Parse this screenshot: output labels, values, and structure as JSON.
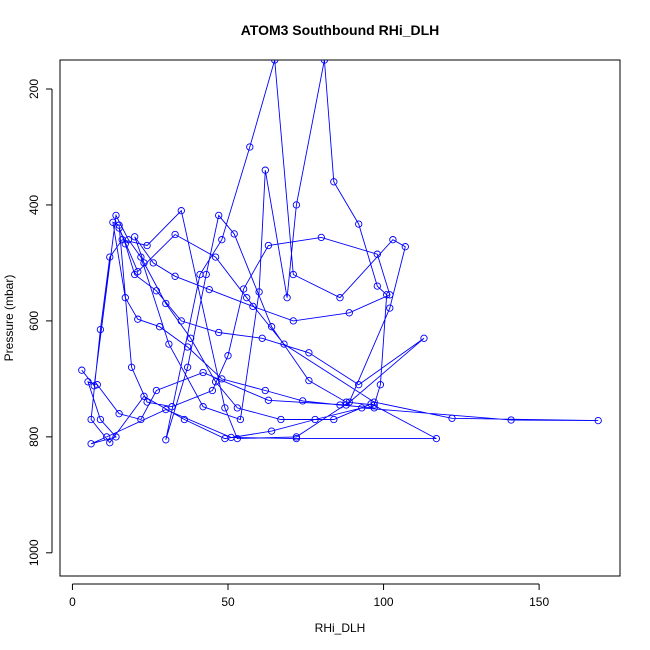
{
  "chart_data": {
    "type": "line",
    "title": "ATOM3 Southbound RHi_DLH",
    "xlabel": "RHi_DLH",
    "ylabel": "Pressure (mbar)",
    "xlim": [
      -4,
      176
    ],
    "ylim": [
      1040,
      150
    ],
    "y_reversed": true,
    "x_ticks": [
      0,
      50,
      100,
      150
    ],
    "y_ticks": [
      200,
      400,
      600,
      800,
      1000
    ],
    "grid": false,
    "legend": "none",
    "colors": {
      "series": "#0000ff",
      "axis": "#000000"
    },
    "series": [
      {
        "marker": "open-circle",
        "points": [
          [
            3,
            685
          ],
          [
            7,
            712
          ],
          [
            14,
            418
          ],
          [
            18,
            460
          ],
          [
            22,
            490
          ],
          [
            31,
            640
          ],
          [
            42,
            748
          ],
          [
            54,
            770
          ],
          [
            60,
            550
          ],
          [
            62,
            340
          ],
          [
            69,
            560
          ],
          [
            72,
            400
          ],
          [
            81,
            150
          ],
          [
            84,
            360
          ],
          [
            92,
            433
          ],
          [
            98,
            540
          ],
          [
            101,
            555
          ],
          [
            99,
            710
          ],
          [
            97,
            745
          ],
          [
            88,
            740
          ],
          [
            76,
            703
          ],
          [
            64,
            610
          ],
          [
            52,
            450
          ],
          [
            47,
            418
          ],
          [
            43,
            520
          ],
          [
            37,
            680
          ],
          [
            30,
            805
          ],
          [
            41,
            520
          ],
          [
            48,
            460
          ],
          [
            57,
            300
          ],
          [
            65,
            150
          ],
          [
            71,
            520
          ],
          [
            86,
            560
          ],
          [
            103,
            460
          ],
          [
            107,
            472
          ],
          [
            102,
            578
          ],
          [
            89,
            740
          ],
          [
            72,
            800
          ],
          [
            53,
            803
          ],
          [
            49,
            750
          ],
          [
            35,
            410
          ],
          [
            24,
            470
          ],
          [
            16,
            460
          ],
          [
            12,
            490
          ],
          [
            9,
            615
          ],
          [
            6,
            770
          ],
          [
            12,
            810
          ],
          [
            23,
            730
          ],
          [
            36,
            770
          ],
          [
            49,
            803
          ],
          [
            64,
            790
          ],
          [
            78,
            770
          ],
          [
            93,
            750
          ],
          [
            141,
            771
          ],
          [
            169,
            772
          ],
          [
            122,
            768
          ],
          [
            97,
            740
          ],
          [
            68,
            640
          ],
          [
            56,
            560
          ],
          [
            46,
            490
          ],
          [
            33,
            451
          ],
          [
            21,
            515
          ],
          [
            15,
            440
          ],
          [
            17,
            467
          ],
          [
            20,
            520
          ],
          [
            27,
            548
          ],
          [
            35,
            600
          ],
          [
            47,
            620
          ],
          [
            61,
            630
          ],
          [
            76,
            655
          ],
          [
            92,
            710
          ],
          [
            113,
            630
          ],
          [
            88,
            745
          ],
          [
            63,
            737
          ],
          [
            42,
            689
          ],
          [
            27,
            720
          ],
          [
            22,
            770
          ],
          [
            15,
            760
          ],
          [
            8,
            710
          ],
          [
            5,
            705
          ],
          [
            9,
            770
          ],
          [
            14,
            800
          ],
          [
            6,
            812
          ],
          [
            11,
            800
          ],
          [
            30,
            753
          ],
          [
            51,
            801
          ],
          [
            72,
            803
          ],
          [
            117,
            803
          ],
          [
            96,
            743
          ],
          [
            84,
            770
          ],
          [
            67,
            770
          ],
          [
            53,
            750
          ],
          [
            46,
            705
          ],
          [
            38,
            630
          ],
          [
            30,
            570
          ],
          [
            23,
            500
          ],
          [
            20,
            455
          ],
          [
            26,
            500
          ],
          [
            33,
            523
          ],
          [
            44,
            546
          ],
          [
            58,
            575
          ],
          [
            71,
            600
          ],
          [
            89,
            586
          ],
          [
            102,
            555
          ],
          [
            98,
            485
          ],
          [
            80,
            456
          ],
          [
            63,
            470
          ],
          [
            55,
            545
          ],
          [
            50,
            660
          ],
          [
            45,
            720
          ],
          [
            32,
            748
          ],
          [
            24,
            740
          ],
          [
            19,
            680
          ],
          [
            15,
            435
          ],
          [
            13,
            430
          ],
          [
            17,
            560
          ],
          [
            21,
            597
          ],
          [
            28,
            610
          ],
          [
            37,
            645
          ],
          [
            48,
            700
          ],
          [
            62,
            720
          ],
          [
            74,
            738
          ],
          [
            86,
            745
          ],
          [
            97,
            750
          ]
        ]
      }
    ]
  }
}
